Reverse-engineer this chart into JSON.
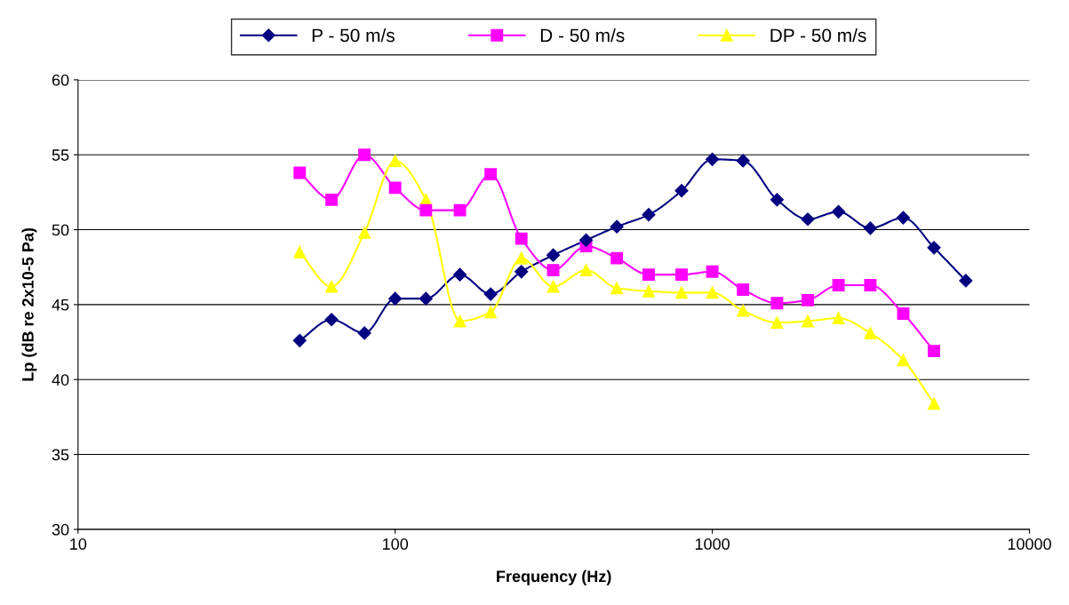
{
  "chart_data": {
    "type": "line",
    "xlabel": "Frequency (Hz)",
    "ylabel": "Lp (dB re 2x10-5 Pa)",
    "log": "x",
    "xlim": [
      10,
      10000
    ],
    "xticks": [
      10,
      100,
      1000,
      10000
    ],
    "ylim": [
      30,
      60
    ],
    "yticks": [
      30,
      35,
      40,
      45,
      50,
      55,
      60
    ],
    "grid": "y",
    "legend": "top",
    "line_style": "solid",
    "series": [
      {
        "name": "P - 50 m/s",
        "color": "#000080",
        "marker": "diamond",
        "x": [
          50,
          63,
          80,
          100,
          125,
          160,
          200,
          250,
          315,
          400,
          500,
          630,
          800,
          1000,
          1250,
          1600,
          2000,
          2500,
          3150,
          4000,
          5000,
          6300
        ],
        "values": [
          42.6,
          44.0,
          43.1,
          45.4,
          45.4,
          47.0,
          45.7,
          47.2,
          48.3,
          49.3,
          50.2,
          51.0,
          52.6,
          54.7,
          54.6,
          52.0,
          50.7,
          51.2,
          50.1,
          50.8,
          48.8,
          46.6
        ]
      },
      {
        "name": "D - 50 m/s",
        "color": "#ff00ff",
        "marker": "square",
        "x": [
          50,
          63,
          80,
          100,
          125,
          160,
          200,
          250,
          315,
          400,
          500,
          630,
          800,
          1000,
          1250,
          1600,
          2000,
          2500,
          3150,
          4000,
          5000
        ],
        "values": [
          53.8,
          52.0,
          55.0,
          52.8,
          51.3,
          51.3,
          53.7,
          49.4,
          47.3,
          48.9,
          48.1,
          47.0,
          47.0,
          47.2,
          46.0,
          45.1,
          45.3,
          46.3,
          46.3,
          44.4,
          41.9
        ]
      },
      {
        "name": "DP - 50 m/s",
        "color": "#ffff00",
        "marker": "triangle",
        "x": [
          50,
          63,
          80,
          100,
          125,
          160,
          200,
          250,
          315,
          400,
          500,
          630,
          800,
          1000,
          1250,
          1600,
          2000,
          2500,
          3150,
          4000,
          5000
        ],
        "values": [
          48.5,
          46.2,
          49.8,
          54.6,
          52.0,
          43.9,
          44.5,
          48.1,
          46.2,
          47.3,
          46.1,
          45.9,
          45.8,
          45.8,
          44.6,
          43.8,
          43.9,
          44.1,
          43.1,
          41.3,
          38.4
        ]
      }
    ]
  }
}
